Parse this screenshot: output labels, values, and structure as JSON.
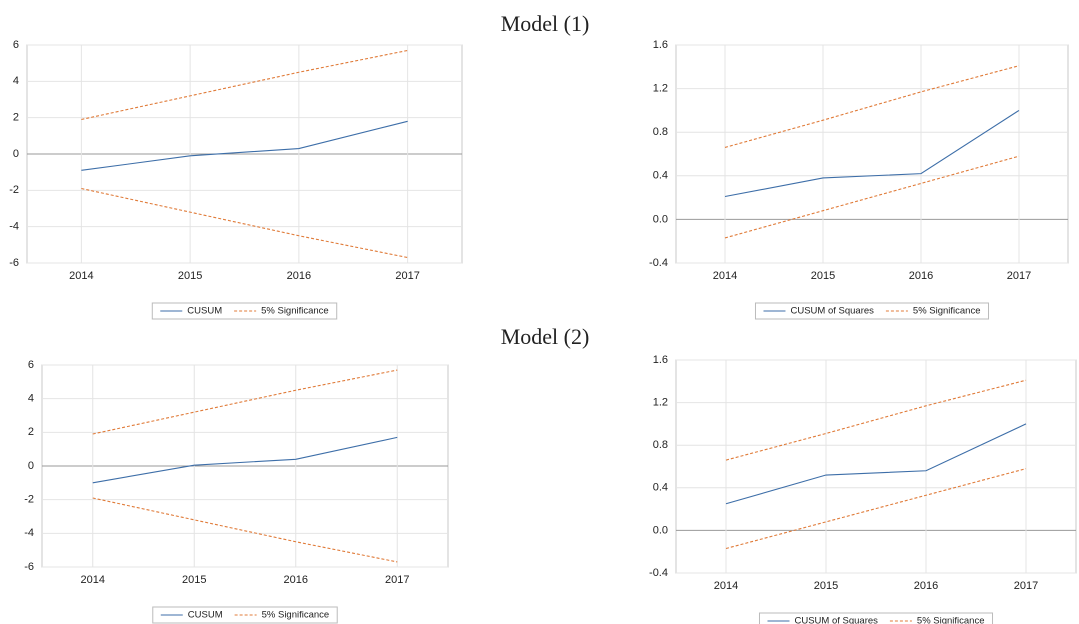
{
  "headings": [
    "Model (1)",
    "Model (2)"
  ],
  "chart_data": [
    {
      "type": "line",
      "categories": [
        "2014",
        "2015",
        "2016",
        "2017"
      ],
      "series": [
        {
          "name": "CUSUM",
          "color": "#3d6ea8",
          "values": [
            -0.9,
            -0.1,
            0.3,
            1.8
          ]
        },
        {
          "name": "5% Significance",
          "color": "#e07b39",
          "dashed": true,
          "values": [
            1.9,
            3.2,
            4.5,
            5.7
          ]
        },
        {
          "color": "#e07b39",
          "dashed": true,
          "values": [
            -1.9,
            -3.2,
            -4.5,
            -5.7
          ]
        }
      ],
      "ylim": [
        -6,
        6
      ],
      "yticks": [
        -6,
        -4,
        -2,
        0,
        2,
        4,
        6
      ],
      "grid": true
    },
    {
      "type": "line",
      "categories": [
        "2014",
        "2015",
        "2016",
        "2017"
      ],
      "series": [
        {
          "name": "CUSUM of Squares",
          "color": "#3d6ea8",
          "values": [
            0.21,
            0.38,
            0.42,
            1.0
          ]
        },
        {
          "name": "5% Significance",
          "color": "#e07b39",
          "dashed": true,
          "values": [
            0.66,
            0.91,
            1.17,
            1.41
          ]
        },
        {
          "color": "#e07b39",
          "dashed": true,
          "values": [
            -0.17,
            0.08,
            0.33,
            0.58
          ]
        }
      ],
      "ylim": [
        -0.4,
        1.6
      ],
      "yticks": [
        -0.4,
        {
          "value": 0,
          "label": "0.0"
        },
        0.4,
        0.8,
        1.2,
        1.6
      ],
      "grid": true
    },
    {
      "type": "line",
      "categories": [
        "2014",
        "2015",
        "2016",
        "2017"
      ],
      "series": [
        {
          "name": "CUSUM",
          "color": "#3d6ea8",
          "values": [
            -1.0,
            0.05,
            0.4,
            1.7
          ]
        },
        {
          "name": "5% Significance",
          "color": "#e07b39",
          "dashed": true,
          "values": [
            1.9,
            3.2,
            4.5,
            5.7
          ]
        },
        {
          "color": "#e07b39",
          "dashed": true,
          "values": [
            -1.9,
            -3.2,
            -4.5,
            -5.7
          ]
        }
      ],
      "ylim": [
        -6,
        6
      ],
      "yticks": [
        -6,
        -4,
        -2,
        0,
        2,
        4,
        6
      ],
      "grid": true
    },
    {
      "type": "line",
      "categories": [
        "2014",
        "2015",
        "2016",
        "2017"
      ],
      "series": [
        {
          "name": "CUSUM of Squares",
          "color": "#3d6ea8",
          "values": [
            0.25,
            0.52,
            0.56,
            1.0
          ]
        },
        {
          "name": "5% Significance",
          "color": "#e07b39",
          "dashed": true,
          "values": [
            0.66,
            0.91,
            1.17,
            1.41
          ]
        },
        {
          "color": "#e07b39",
          "dashed": true,
          "values": [
            -0.17,
            0.08,
            0.33,
            0.58
          ]
        }
      ],
      "ylim": [
        -0.4,
        1.6
      ],
      "yticks": [
        -0.4,
        {
          "value": 0,
          "label": "0.0"
        },
        0.4,
        0.8,
        1.2,
        1.6
      ],
      "grid": true
    }
  ]
}
